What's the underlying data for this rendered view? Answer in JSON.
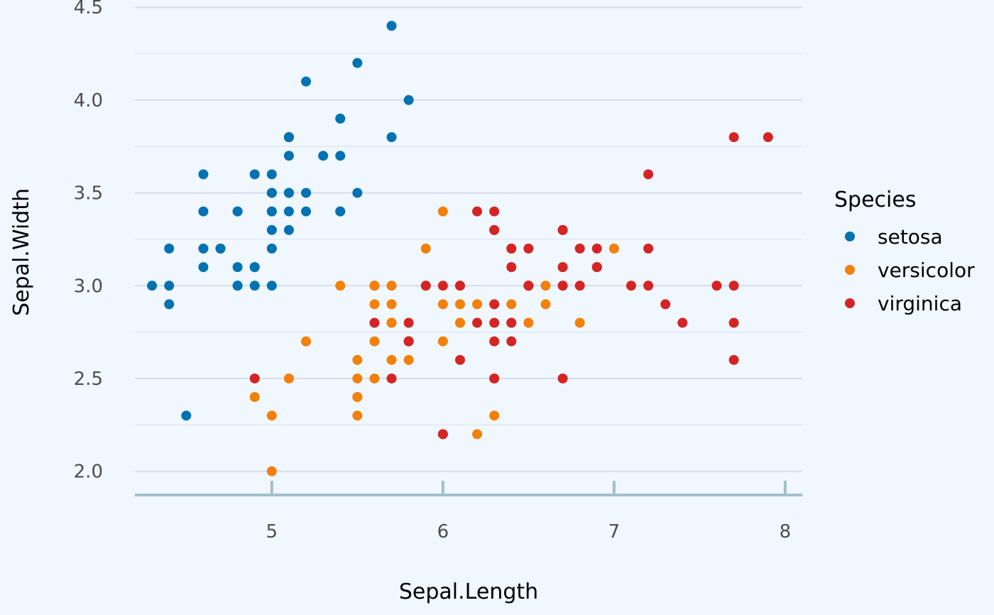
{
  "chart_data": {
    "type": "scatter",
    "title": "",
    "xlabel": "Sepal.Length",
    "ylabel": "Sepal.Width",
    "xlim": [
      4.2,
      8.1
    ],
    "ylim": [
      1.88,
      4.52
    ],
    "x_ticks": [
      5,
      6,
      7,
      8
    ],
    "x_tick_labels": [
      "5",
      "6",
      "7",
      "8"
    ],
    "y_ticks": [
      2.0,
      2.5,
      3.0,
      3.5,
      4.0,
      4.5
    ],
    "y_tick_labels": [
      "2.0",
      "2.5",
      "3.0",
      "3.5",
      "4.0",
      "4.5"
    ],
    "grid": "horizontal",
    "legend": {
      "title": "Species",
      "position": "right"
    },
    "colors": {
      "background": "#f0f7fe",
      "grid": "#d4deea",
      "axis": "#a3bfcc"
    },
    "series": [
      {
        "name": "setosa",
        "color": "#0072b2",
        "points": [
          [
            5.1,
            3.5
          ],
          [
            4.9,
            3.0
          ],
          [
            4.7,
            3.2
          ],
          [
            4.6,
            3.1
          ],
          [
            5.0,
            3.6
          ],
          [
            5.4,
            3.9
          ],
          [
            4.6,
            3.4
          ],
          [
            5.0,
            3.4
          ],
          [
            4.4,
            2.9
          ],
          [
            4.9,
            3.1
          ],
          [
            5.4,
            3.7
          ],
          [
            4.8,
            3.4
          ],
          [
            4.8,
            3.0
          ],
          [
            4.3,
            3.0
          ],
          [
            5.8,
            4.0
          ],
          [
            5.7,
            4.4
          ],
          [
            5.4,
            3.9
          ],
          [
            5.1,
            3.5
          ],
          [
            5.7,
            3.8
          ],
          [
            5.1,
            3.8
          ],
          [
            5.4,
            3.4
          ],
          [
            5.1,
            3.7
          ],
          [
            4.6,
            3.6
          ],
          [
            5.1,
            3.3
          ],
          [
            4.8,
            3.4
          ],
          [
            5.0,
            3.0
          ],
          [
            5.0,
            3.4
          ],
          [
            5.2,
            3.5
          ],
          [
            5.2,
            3.4
          ],
          [
            4.7,
            3.2
          ],
          [
            4.8,
            3.1
          ],
          [
            5.4,
            3.4
          ],
          [
            5.2,
            4.1
          ],
          [
            5.5,
            4.2
          ],
          [
            4.9,
            3.1
          ],
          [
            5.0,
            3.2
          ],
          [
            5.5,
            3.5
          ],
          [
            4.9,
            3.6
          ],
          [
            4.4,
            3.0
          ],
          [
            5.1,
            3.4
          ],
          [
            5.0,
            3.5
          ],
          [
            4.5,
            2.3
          ],
          [
            4.4,
            3.2
          ],
          [
            5.0,
            3.5
          ],
          [
            5.1,
            3.8
          ],
          [
            4.8,
            3.0
          ],
          [
            5.1,
            3.8
          ],
          [
            4.6,
            3.2
          ],
          [
            5.3,
            3.7
          ],
          [
            5.0,
            3.3
          ]
        ]
      },
      {
        "name": "versicolor",
        "color": "#f28009",
        "points": [
          [
            7.0,
            3.2
          ],
          [
            6.4,
            3.2
          ],
          [
            6.9,
            3.1
          ],
          [
            5.5,
            2.3
          ],
          [
            6.5,
            2.8
          ],
          [
            5.7,
            2.8
          ],
          [
            6.3,
            3.3
          ],
          [
            4.9,
            2.4
          ],
          [
            6.6,
            2.9
          ],
          [
            5.2,
            2.7
          ],
          [
            5.0,
            2.0
          ],
          [
            5.9,
            3.0
          ],
          [
            6.0,
            2.2
          ],
          [
            6.1,
            2.9
          ],
          [
            5.6,
            2.9
          ],
          [
            6.7,
            3.1
          ],
          [
            5.6,
            3.0
          ],
          [
            5.8,
            2.7
          ],
          [
            6.2,
            2.2
          ],
          [
            5.6,
            2.5
          ],
          [
            5.9,
            3.2
          ],
          [
            6.1,
            2.8
          ],
          [
            6.3,
            2.5
          ],
          [
            6.1,
            2.8
          ],
          [
            6.4,
            2.9
          ],
          [
            6.6,
            3.0
          ],
          [
            6.8,
            2.8
          ],
          [
            6.7,
            3.0
          ],
          [
            6.0,
            2.9
          ],
          [
            5.7,
            2.6
          ],
          [
            5.5,
            2.4
          ],
          [
            5.5,
            2.4
          ],
          [
            5.8,
            2.7
          ],
          [
            6.0,
            2.7
          ],
          [
            5.4,
            3.0
          ],
          [
            6.0,
            3.4
          ],
          [
            6.7,
            3.1
          ],
          [
            6.3,
            2.3
          ],
          [
            5.6,
            3.0
          ],
          [
            5.5,
            2.5
          ],
          [
            5.5,
            2.6
          ],
          [
            6.1,
            3.0
          ],
          [
            5.8,
            2.6
          ],
          [
            5.0,
            2.3
          ],
          [
            5.6,
            2.7
          ],
          [
            5.7,
            3.0
          ],
          [
            5.7,
            2.9
          ],
          [
            6.2,
            2.9
          ],
          [
            5.1,
            2.5
          ],
          [
            5.7,
            2.8
          ]
        ]
      },
      {
        "name": "virginica",
        "color": "#d42424",
        "points": [
          [
            6.3,
            3.3
          ],
          [
            5.8,
            2.7
          ],
          [
            7.1,
            3.0
          ],
          [
            6.3,
            2.9
          ],
          [
            6.5,
            3.0
          ],
          [
            7.6,
            3.0
          ],
          [
            4.9,
            2.5
          ],
          [
            7.3,
            2.9
          ],
          [
            6.7,
            2.5
          ],
          [
            7.2,
            3.6
          ],
          [
            6.5,
            3.2
          ],
          [
            6.4,
            2.7
          ],
          [
            6.8,
            3.0
          ],
          [
            5.7,
            2.5
          ],
          [
            5.8,
            2.8
          ],
          [
            6.4,
            3.2
          ],
          [
            6.5,
            3.0
          ],
          [
            7.7,
            3.8
          ],
          [
            7.7,
            2.6
          ],
          [
            6.0,
            2.2
          ],
          [
            6.9,
            3.2
          ],
          [
            5.6,
            2.8
          ],
          [
            7.7,
            2.8
          ],
          [
            6.3,
            2.7
          ],
          [
            6.7,
            3.3
          ],
          [
            7.2,
            3.2
          ],
          [
            6.2,
            2.8
          ],
          [
            6.1,
            3.0
          ],
          [
            6.4,
            2.8
          ],
          [
            7.2,
            3.0
          ],
          [
            7.4,
            2.8
          ],
          [
            7.9,
            3.8
          ],
          [
            6.4,
            2.8
          ],
          [
            6.3,
            2.8
          ],
          [
            6.1,
            2.6
          ],
          [
            7.7,
            3.0
          ],
          [
            6.3,
            3.4
          ],
          [
            6.4,
            3.1
          ],
          [
            6.0,
            3.0
          ],
          [
            6.9,
            3.1
          ],
          [
            6.7,
            3.1
          ],
          [
            6.9,
            3.1
          ],
          [
            5.8,
            2.7
          ],
          [
            6.8,
            3.2
          ],
          [
            6.7,
            3.3
          ],
          [
            6.7,
            3.0
          ],
          [
            6.3,
            2.5
          ],
          [
            6.5,
            3.0
          ],
          [
            6.2,
            3.4
          ],
          [
            5.9,
            3.0
          ]
        ]
      }
    ]
  }
}
